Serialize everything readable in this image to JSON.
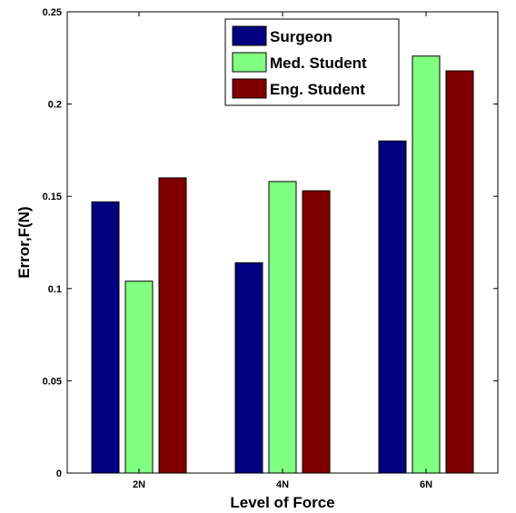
{
  "chart_data": {
    "type": "bar",
    "categories": [
      "2N",
      "4N",
      "6N"
    ],
    "series": [
      {
        "name": "Surgeon",
        "values": [
          0.147,
          0.114,
          0.18
        ],
        "color": "#000080"
      },
      {
        "name": "Med. Student",
        "values": [
          0.104,
          0.158,
          0.226
        ],
        "color": "#80ff80"
      },
      {
        "name": "Eng. Student",
        "values": [
          0.16,
          0.153,
          0.218
        ],
        "color": "#800000"
      }
    ],
    "title": "",
    "xlabel": "Level of Force",
    "ylabel": "Error,F(N)",
    "ylim": [
      0,
      0.25
    ],
    "yticks": [
      "0",
      "0.05",
      "0.1",
      "0.15",
      "0.2",
      "0.25"
    ],
    "ytick_values": [
      0,
      0.05,
      0.1,
      0.15,
      0.2,
      0.25
    ],
    "legend_position": "top-center",
    "grid": false
  }
}
